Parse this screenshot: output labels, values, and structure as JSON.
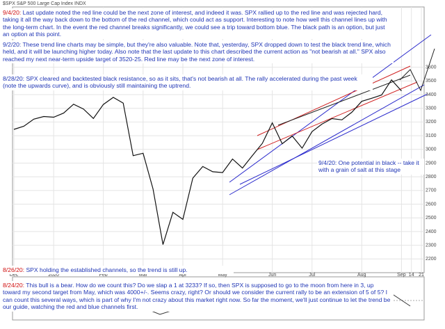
{
  "header": "$SPX S&P 500 Large Cap Index INDX",
  "chart_data": {
    "type": "line",
    "color": "#111111",
    "categories": [
      "Dec",
      null,
      null,
      null,
      "2020",
      null,
      null,
      null,
      null,
      "Feb",
      null,
      null,
      null,
      "Mar",
      null,
      null,
      null,
      "Apr",
      null,
      null,
      null,
      "May",
      null,
      null,
      null,
      null,
      "Jun",
      null,
      null,
      null,
      "Jul",
      null,
      null,
      null,
      null,
      "Aug",
      null,
      null,
      null,
      "Sep",
      "14",
      "21"
    ],
    "values": [
      3146,
      3169,
      3221,
      3240,
      3235,
      3265,
      3330,
      3295,
      3226,
      3328,
      3380,
      3338,
      2954,
      2972,
      2711,
      2305,
      2541,
      2489,
      2790,
      2875,
      2837,
      2831,
      2930,
      2864,
      2955,
      3044,
      3194,
      3041,
      3098,
      3009,
      3130,
      3185,
      3225,
      3216,
      3271,
      3351,
      3373,
      3397,
      3508,
      3427,
      null,
      null
    ],
    "ylim": [
      2100,
      4040
    ],
    "yticks": [
      2200,
      2300,
      2400,
      2500,
      2600,
      2700,
      2800,
      2900,
      3000,
      3100,
      3200,
      3300,
      3400,
      3500,
      3600
    ],
    "grid": true
  },
  "annotations": [
    {
      "date": "9/4/20:",
      "text": "Last update noted the red line could be the next zone of interest, and indeed it was. SPX rallied up to the red line and was rejected hard, taking it all the way back down to the bottom of the red channel, which could act as support. Interesting to note how well this channel lines up with the long-term chart. In the event the red channel breaks significantly, we could see a trip toward bottom blue. The black path is an option, but just an option at this point."
    },
    {
      "date": "9/2/20:",
      "text": "These trend line charts may be simple, but they're also valuable. Note that, yesterday, SPX dropped down to test the black trend line, which held, and it will be launching higher today. Also note that the last update to this chart described the current action as \"not bearish at all.\" SPX also reached my next near-term upside target of 3520-25. Red line may be the next zone of interest."
    },
    {
      "date": "8/28/20:",
      "text": "SPX cleared and backtested black resistance, so as it sits, that's not bearish at all. The rally accelerated during the past week (note the upwards curve), and is obviously still maintaining the uptrend."
    },
    {
      "date": "9/4/20:",
      "text": "One potential in black -- take it with a grain of salt at this stage"
    },
    {
      "date": "8/26/20:",
      "text": "SPX holding the established channels, so the trend is still up."
    },
    {
      "date": "8/24/20:",
      "text": "This bull is a bear. How do we count this? Do we slap a 1 at 3233? If so, then SPX is supposed to go to the moon from here in 3, up toward my second target from May, which was 4000+/-. Seems crazy, right? Or should we consider the current rally to be an extension of 5 of 5? I can count this several ways, which is part of why I'm not crazy about this market right now. So far the moment, we'll just continue to let the trend be our guide, watching the red and blue channels first."
    }
  ]
}
